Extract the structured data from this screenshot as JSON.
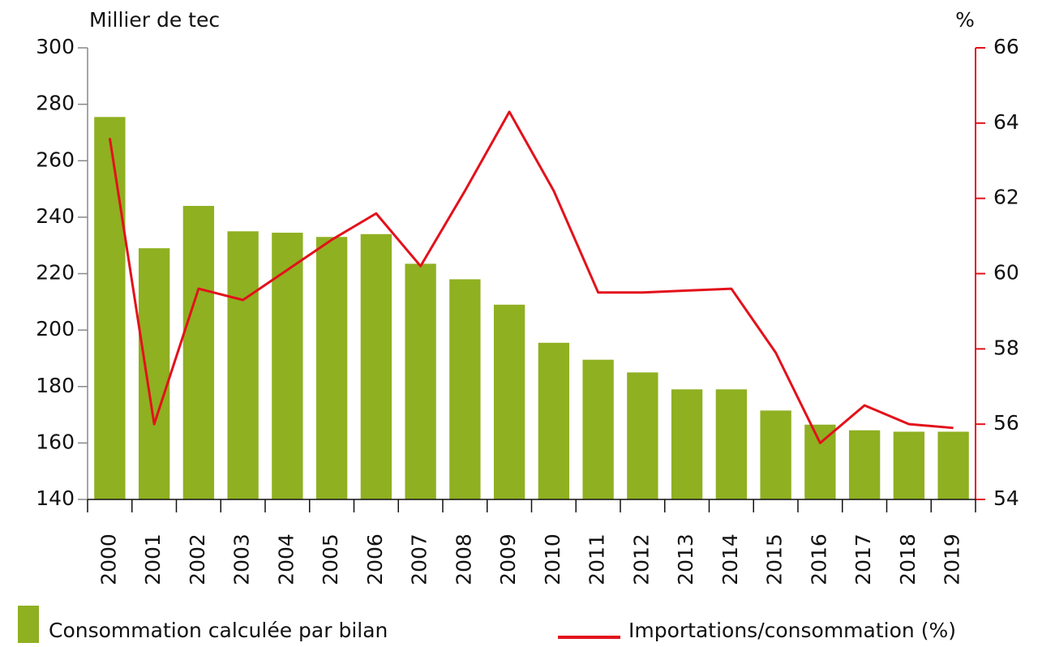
{
  "chart_data": {
    "type": "bar",
    "y_label": "Millier de tec",
    "y2_label": "%",
    "categories": [
      "2000",
      "2001",
      "2002",
      "2003",
      "2004",
      "2005",
      "2006",
      "2007",
      "2008",
      "2009",
      "2010",
      "2011",
      "2012",
      "2013",
      "2014",
      "2015",
      "2016",
      "2017",
      "2018",
      "2019"
    ],
    "series": [
      {
        "name": "Consommation calculée par bilan",
        "type": "bar",
        "color": "#8fb021",
        "values": [
          275.5,
          229,
          244,
          235,
          234.5,
          233,
          234,
          223.5,
          218,
          209,
          195.5,
          189.5,
          185,
          179,
          179,
          171.5,
          166.5,
          164.5,
          164,
          164
        ]
      },
      {
        "name": "Importations/consommation (%)",
        "type": "line",
        "axis": "y2",
        "color": "#e3111b",
        "values": [
          63.6,
          56.0,
          59.6,
          59.3,
          60.1,
          60.9,
          61.6,
          60.2,
          62.2,
          64.3,
          62.2,
          59.5,
          59.5,
          59.55,
          59.6,
          57.9,
          55.5,
          56.5,
          56.0,
          55.9
        ]
      }
    ],
    "ylim": [
      140,
      300
    ],
    "yticks": [
      140,
      160,
      180,
      200,
      220,
      240,
      260,
      280,
      300
    ],
    "y2lim": [
      54,
      66
    ],
    "y2ticks": [
      54,
      56,
      58,
      60,
      62,
      64,
      66
    ],
    "ytick_color": "#8aa62a",
    "y2tick_color": "#e3111b"
  }
}
